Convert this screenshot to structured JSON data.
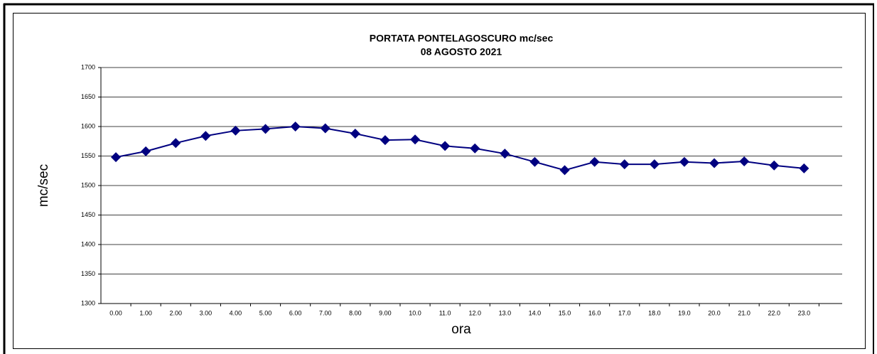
{
  "chart_data": {
    "type": "line",
    "title": "PORTATA PONTELAGOSCURO mc/sec",
    "subtitle": "08 AGOSTO  2021",
    "x_label": "ora",
    "y_label": "mc/sec",
    "categories": [
      "0.00",
      "1.00",
      "2.00",
      "3.00",
      "4.00",
      "5.00",
      "6.00",
      "7.00",
      "8.00",
      "9.00",
      "10.0",
      "11.0",
      "12.0",
      "13.0",
      "14.0",
      "15.0",
      "16.0",
      "17.0",
      "18.0",
      "19.0",
      "20.0",
      "21.0",
      "22.0",
      "23.0"
    ],
    "values": [
      1548,
      1558,
      1572,
      1584,
      1593,
      1596,
      1600,
      1597,
      1588,
      1577,
      1578,
      1567,
      1563,
      1554,
      1540,
      1526,
      1540,
      1536,
      1536,
      1540,
      1538,
      1541,
      1534,
      1529
    ],
    "color": "#000080",
    "ylim": [
      1300,
      1700
    ],
    "yticks": [
      1300,
      1350,
      1400,
      1450,
      1500,
      1550,
      1600,
      1650,
      1700
    ],
    "grid": true
  }
}
